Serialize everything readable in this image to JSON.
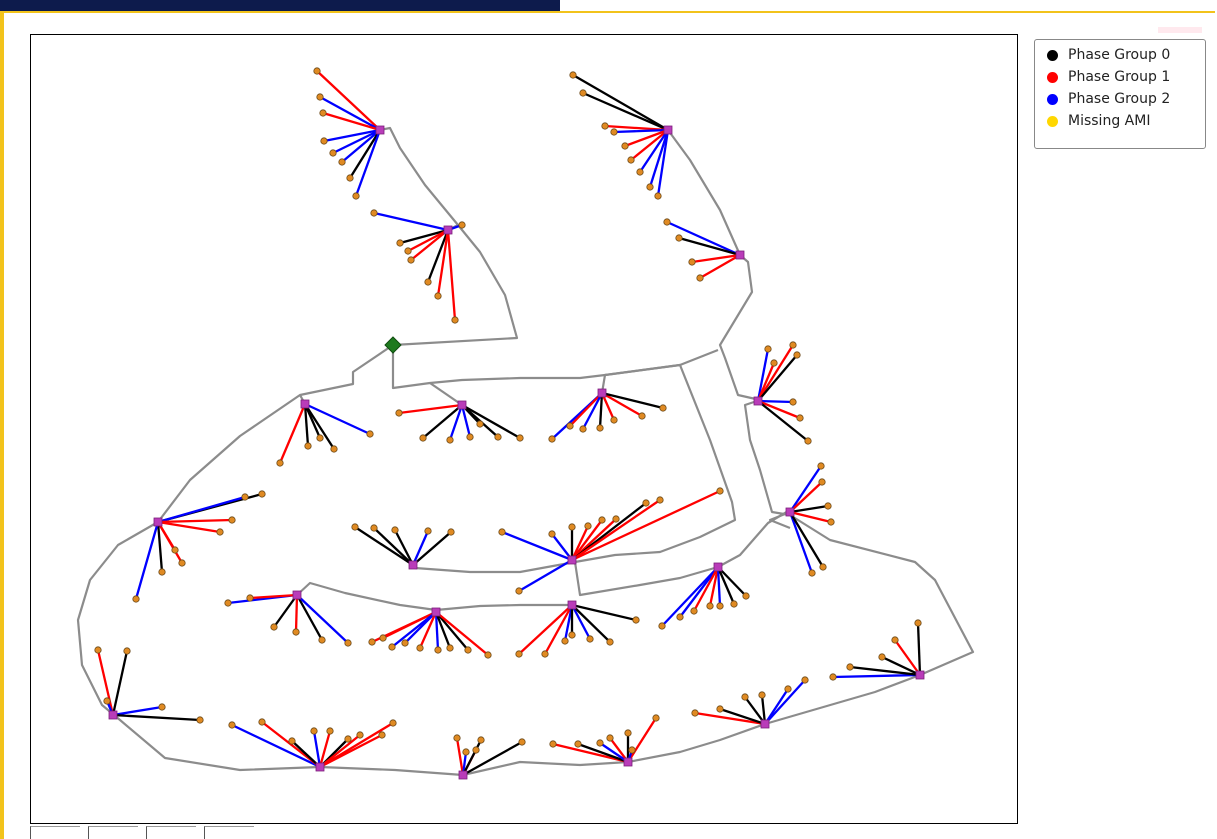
{
  "legend": {
    "items": [
      {
        "label": "Phase Group 0",
        "color": "#000000"
      },
      {
        "label": "Phase Group 1",
        "color": "#ff0000"
      },
      {
        "label": "Phase Group 2",
        "color": "#0000ff"
      },
      {
        "label": "Missing AMI",
        "color": "#ffd700"
      }
    ]
  },
  "colors": {
    "feeder_line": "#8c8c8c",
    "transformer": "#b93cb9",
    "meter": "#e08a22",
    "substation": "#1e7a1e",
    "accent_top_bar": "#0d1b4c",
    "frame": "#f2c31b"
  },
  "icons": {
    "substation": "green-diamond",
    "transformer": "magenta-square",
    "meter": "orange-dot"
  },
  "toolbar": {
    "buttons": [
      "home-button",
      "pan-button",
      "zoom-button",
      "save-button"
    ]
  }
}
